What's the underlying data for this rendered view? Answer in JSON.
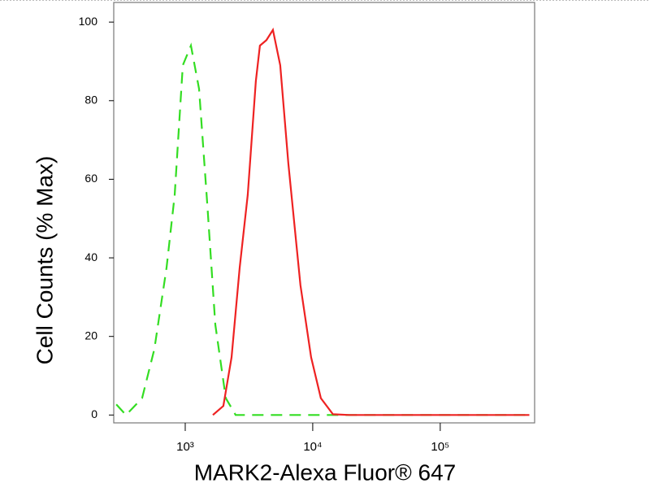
{
  "chart_data": {
    "type": "line",
    "x_label": "MARK2-Alexa Fluor® 647",
    "y_label": "Cell Counts (% Max)",
    "xscale": "log",
    "grid": false,
    "xlim": [
      275,
      550000
    ],
    "ylim": [
      -2,
      105
    ],
    "xticks": [
      {
        "value": 1000,
        "label": "10³"
      },
      {
        "value": 10000,
        "label": "10⁴"
      },
      {
        "value": 100000,
        "label": "10⁵"
      }
    ],
    "yticks": [
      0,
      20,
      40,
      60,
      80,
      100
    ],
    "series": [
      {
        "color": "#33dd22",
        "dashed": true,
        "x": [
          288,
          343,
          459,
          573,
          714,
          826,
          957,
          1109,
          1283,
          1486,
          1721,
          2081,
          2484,
          4467,
          16600,
          490000
        ],
        "values": [
          2.7,
          0,
          4.3,
          16.8,
          37.5,
          56,
          89,
          94,
          83,
          54,
          23,
          4.3,
          0,
          0,
          0,
          0
        ]
      },
      {
        "color": "#ee2222",
        "dashed": false,
        "x": [
          1648,
          1991,
          2307,
          2673,
          3090,
          3581,
          3855,
          4335,
          4875,
          5559,
          6442,
          8017,
          9707,
          11580,
          14420,
          19360,
          30060,
          500000
        ],
        "values": [
          0,
          2.3,
          14.7,
          37.5,
          56,
          85,
          94,
          95.4,
          98,
          89,
          64,
          33,
          14.7,
          4.3,
          0.2,
          0,
          0,
          0
        ]
      }
    ]
  }
}
